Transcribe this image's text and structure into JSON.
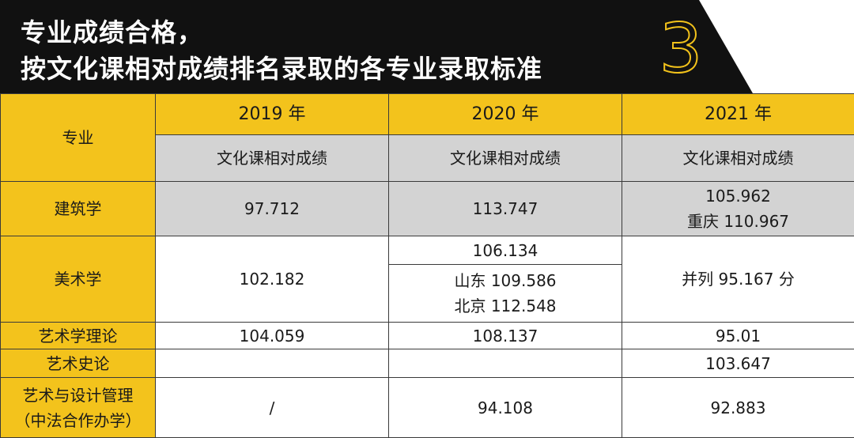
{
  "header": {
    "title_line1": "专业成绩合格，",
    "title_line2": "按文化课相对成绩排名录取的各专业录取标准",
    "badge_number": "3",
    "colors": {
      "banner": "#111111",
      "accent": "#f3c31c"
    }
  },
  "table": {
    "major_header": "专业",
    "years": [
      "2019 年",
      "2020 年",
      "2021 年"
    ],
    "sub_header": "文化课相对成绩",
    "rows": [
      {
        "major": "建筑学",
        "y2019": "97.712",
        "y2020": "113.747",
        "y2021_line1": "105.962",
        "y2021_line2": "重庆 110.967"
      },
      {
        "major": "美术学",
        "y2019": "102.182",
        "y2020_line1": "106.134",
        "y2020_line2": "山东 109.586",
        "y2020_line3": "北京 112.548",
        "y2021": "并列 95.167 分"
      },
      {
        "major": "艺术学理论",
        "y2019": "104.059",
        "y2020": "108.137",
        "y2021": "95.01"
      },
      {
        "major": "艺术史论",
        "y2019": "",
        "y2020": "",
        "y2021": "103.647"
      },
      {
        "major_line1": "艺术与设计管理",
        "major_line2": "（中法合作办学）",
        "y2019": "/",
        "y2020": "94.108",
        "y2021": "92.883"
      }
    ]
  }
}
